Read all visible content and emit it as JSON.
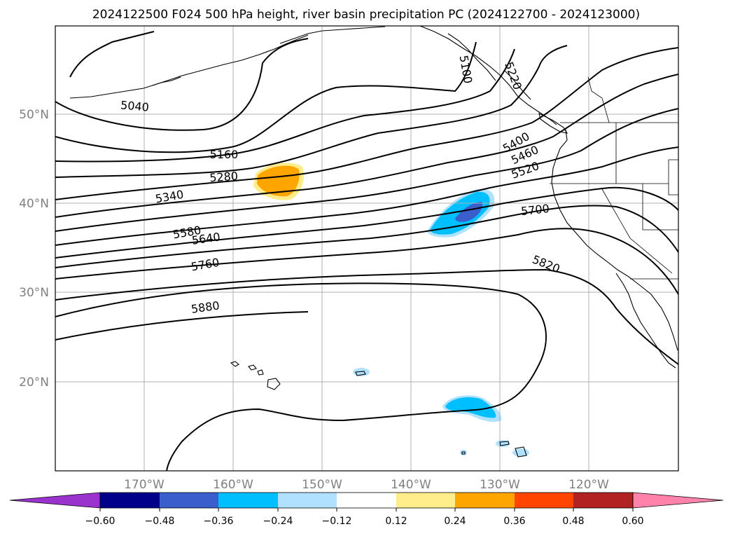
{
  "title": "2024122500 F024 500 hPa height, river basin precipitation PC (2024122700 - 2024123000)",
  "lat_ticks": [
    "50°N",
    "40°N",
    "30°N",
    "20°N"
  ],
  "lon_ticks": [
    "170°W",
    "160°W",
    "150°W",
    "140°W",
    "130°W",
    "120°W"
  ],
  "contour_labels": [
    "5040",
    "5100",
    "5160",
    "5220",
    "5280",
    "5340",
    "5400",
    "5460",
    "5520",
    "5580",
    "5640",
    "5700",
    "5760",
    "5820",
    "5880"
  ],
  "colorbar": {
    "ticks": [
      "−0.60",
      "−0.48",
      "−0.36",
      "−0.24",
      "−0.12",
      "0.12",
      "0.24",
      "0.36",
      "0.48",
      "0.60"
    ],
    "colors": [
      "#9a32cd",
      "#00008b",
      "#3a5fcd",
      "#00bfff",
      "#b0e2ff",
      "#ffffff",
      "#ffec8b",
      "#ffa500",
      "#ff4500",
      "#b22222",
      "#ff82ab"
    ]
  },
  "chart_data": {
    "type": "contour-map",
    "projection": "PlateCarree",
    "lon_range": [
      -180,
      -110
    ],
    "lat_range": [
      10,
      60
    ],
    "gridlines": true,
    "height_contour_levels": [
      5040,
      5100,
      5160,
      5220,
      5280,
      5340,
      5400,
      5460,
      5520,
      5580,
      5640,
      5700,
      5760,
      5820,
      5880
    ],
    "shaded_field": "river basin precipitation PC",
    "shading_bounds": [
      -0.6,
      -0.48,
      -0.36,
      -0.24,
      -0.12,
      0.12,
      0.24,
      0.36,
      0.48,
      0.6
    ],
    "shaded_regions": [
      {
        "value_range": [
          0.24,
          0.36
        ],
        "center_lon": -155,
        "center_lat": 42.5
      },
      {
        "value_range": [
          -0.48,
          -0.24
        ],
        "center_lon": -133.5,
        "center_lat": 39
      },
      {
        "value_range": [
          -0.36,
          -0.24
        ],
        "center_lon": -133,
        "center_lat": 17
      },
      {
        "value_range": [
          -0.24,
          -0.12
        ],
        "center_lon": -145.5,
        "center_lat": 21
      }
    ]
  }
}
